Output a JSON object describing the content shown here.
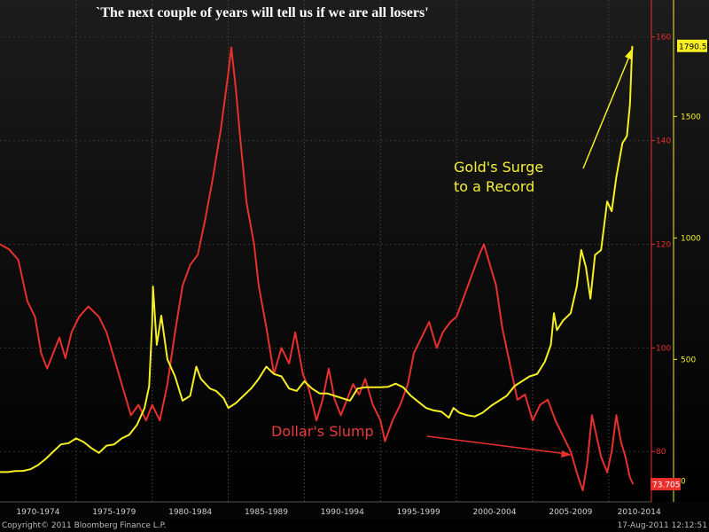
{
  "title": "`The next couple of years will tell us if we are all losers'",
  "annotations": {
    "gold": "Gold's Surge\nto a Record",
    "dollar": "Dollar's Slump"
  },
  "footer": {
    "copyright": "Copyright© 2011 Bloomberg Finance L.P.",
    "timestamp": "17-Aug-2011 12:12:51"
  },
  "chart_data": {
    "type": "line",
    "x_range": [
      1970.0,
      2011.7
    ],
    "x_tick_labels": [
      "1970-1974",
      "1975-1979",
      "1980-1984",
      "1985-1989",
      "1990-1994",
      "1995-1999",
      "2000-2004",
      "2005-2009",
      "2010-2014"
    ],
    "x_tick_label_centers": [
      1972.5,
      1977.5,
      1982.5,
      1987.5,
      1992.5,
      1997.5,
      2002.5,
      2007.5,
      2012.0
    ],
    "y_left": {
      "label": "",
      "range": [
        72,
        162
      ],
      "ticks": [
        80,
        100,
        120,
        140,
        160
      ]
    },
    "y_right": {
      "label": "",
      "range": [
        -50,
        1870
      ],
      "ticks": [
        0,
        500,
        1000,
        1500
      ]
    },
    "grid": true,
    "colors": {
      "dollar": "#e8302c",
      "gold": "#f5ef23",
      "background_top": "#1c1c1c",
      "background_bottom": "#000000",
      "axis_text": "#e8302c"
    },
    "series": [
      {
        "name": "Dollar's Slump",
        "axis": "left",
        "color": "#e8302c",
        "last_value_label": "73.705",
        "points": [
          [
            1970.0,
            120
          ],
          [
            1970.6,
            119
          ],
          [
            1971.2,
            117
          ],
          [
            1971.8,
            109
          ],
          [
            1972.3,
            106
          ],
          [
            1972.7,
            99
          ],
          [
            1973.1,
            96
          ],
          [
            1973.5,
            99
          ],
          [
            1973.9,
            102
          ],
          [
            1974.3,
            98
          ],
          [
            1974.7,
            103
          ],
          [
            1975.2,
            106
          ],
          [
            1975.8,
            108
          ],
          [
            1976.5,
            106
          ],
          [
            1977.0,
            103
          ],
          [
            1977.5,
            98
          ],
          [
            1978.1,
            92
          ],
          [
            1978.6,
            87
          ],
          [
            1979.1,
            89
          ],
          [
            1979.6,
            86
          ],
          [
            1980.0,
            89
          ],
          [
            1980.5,
            86
          ],
          [
            1981.0,
            93
          ],
          [
            1981.5,
            103
          ],
          [
            1982.0,
            112
          ],
          [
            1982.5,
            116
          ],
          [
            1983.0,
            118
          ],
          [
            1983.5,
            125
          ],
          [
            1984.0,
            133
          ],
          [
            1984.5,
            142
          ],
          [
            1985.0,
            153
          ],
          [
            1985.2,
            158
          ],
          [
            1985.5,
            150
          ],
          [
            1985.8,
            140
          ],
          [
            1986.2,
            128
          ],
          [
            1986.7,
            120
          ],
          [
            1987.0,
            112
          ],
          [
            1987.5,
            104
          ],
          [
            1988.0,
            95
          ],
          [
            1988.5,
            100
          ],
          [
            1989.0,
            97
          ],
          [
            1989.4,
            103
          ],
          [
            1989.9,
            95
          ],
          [
            1990.3,
            92
          ],
          [
            1990.8,
            86
          ],
          [
            1991.2,
            90
          ],
          [
            1991.6,
            96
          ],
          [
            1992.0,
            90
          ],
          [
            1992.4,
            87
          ],
          [
            1992.8,
            90
          ],
          [
            1993.2,
            93
          ],
          [
            1993.6,
            91
          ],
          [
            1994.0,
            94
          ],
          [
            1994.5,
            89
          ],
          [
            1995.0,
            86
          ],
          [
            1995.3,
            82
          ],
          [
            1995.8,
            86
          ],
          [
            1996.3,
            89
          ],
          [
            1996.8,
            93
          ],
          [
            1997.2,
            99
          ],
          [
            1997.7,
            102
          ],
          [
            1998.2,
            105
          ],
          [
            1998.7,
            100
          ],
          [
            1999.1,
            103
          ],
          [
            1999.6,
            105
          ],
          [
            2000.0,
            106
          ],
          [
            2000.5,
            110
          ],
          [
            2001.0,
            114
          ],
          [
            2001.5,
            118
          ],
          [
            2001.8,
            120
          ],
          [
            2002.2,
            116
          ],
          [
            2002.6,
            112
          ],
          [
            2003.0,
            104
          ],
          [
            2003.5,
            97
          ],
          [
            2004.0,
            90
          ],
          [
            2004.5,
            91
          ],
          [
            2005.0,
            86
          ],
          [
            2005.5,
            89
          ],
          [
            2006.0,
            90
          ],
          [
            2006.5,
            86
          ],
          [
            2007.0,
            83
          ],
          [
            2007.5,
            80
          ],
          [
            2008.0,
            75
          ],
          [
            2008.3,
            72.5
          ],
          [
            2008.6,
            78
          ],
          [
            2008.9,
            87
          ],
          [
            2009.2,
            83
          ],
          [
            2009.5,
            79
          ],
          [
            2009.9,
            76
          ],
          [
            2010.2,
            80
          ],
          [
            2010.5,
            87
          ],
          [
            2010.8,
            82
          ],
          [
            2011.1,
            79
          ],
          [
            2011.4,
            75
          ],
          [
            2011.6,
            73.705
          ]
        ]
      },
      {
        "name": "Gold's Surge to a Record",
        "axis": "right",
        "color": "#f5ef23",
        "last_value_label": "1790.55",
        "points": [
          [
            1970.0,
            36
          ],
          [
            1970.5,
            36
          ],
          [
            1971.0,
            40
          ],
          [
            1971.5,
            41
          ],
          [
            1972.0,
            48
          ],
          [
            1972.5,
            65
          ],
          [
            1973.0,
            90
          ],
          [
            1973.5,
            120
          ],
          [
            1974.0,
            150
          ],
          [
            1974.5,
            155
          ],
          [
            1975.0,
            175
          ],
          [
            1975.5,
            160
          ],
          [
            1976.0,
            135
          ],
          [
            1976.5,
            115
          ],
          [
            1977.0,
            145
          ],
          [
            1977.5,
            150
          ],
          [
            1978.0,
            175
          ],
          [
            1978.5,
            190
          ],
          [
            1979.0,
            230
          ],
          [
            1979.5,
            300
          ],
          [
            1979.8,
            390
          ],
          [
            1980.0,
            650
          ],
          [
            1980.05,
            800
          ],
          [
            1980.3,
            560
          ],
          [
            1980.6,
            680
          ],
          [
            1981.0,
            500
          ],
          [
            1981.5,
            430
          ],
          [
            1982.0,
            330
          ],
          [
            1982.5,
            350
          ],
          [
            1982.9,
            470
          ],
          [
            1983.2,
            420
          ],
          [
            1983.8,
            380
          ],
          [
            1984.2,
            370
          ],
          [
            1984.7,
            340
          ],
          [
            1985.0,
            300
          ],
          [
            1985.5,
            320
          ],
          [
            1986.0,
            350
          ],
          [
            1986.5,
            380
          ],
          [
            1987.0,
            420
          ],
          [
            1987.5,
            470
          ],
          [
            1988.0,
            440
          ],
          [
            1988.5,
            430
          ],
          [
            1989.0,
            380
          ],
          [
            1989.5,
            370
          ],
          [
            1990.0,
            410
          ],
          [
            1990.5,
            380
          ],
          [
            1991.0,
            360
          ],
          [
            1991.5,
            360
          ],
          [
            1992.0,
            350
          ],
          [
            1992.5,
            340
          ],
          [
            1993.0,
            330
          ],
          [
            1993.5,
            380
          ],
          [
            1994.0,
            385
          ],
          [
            1994.5,
            385
          ],
          [
            1995.0,
            385
          ],
          [
            1995.5,
            387
          ],
          [
            1996.0,
            400
          ],
          [
            1996.5,
            385
          ],
          [
            1997.0,
            350
          ],
          [
            1997.5,
            325
          ],
          [
            1998.0,
            300
          ],
          [
            1998.5,
            290
          ],
          [
            1999.0,
            285
          ],
          [
            1999.5,
            260
          ],
          [
            1999.8,
            300
          ],
          [
            2000.2,
            280
          ],
          [
            2000.7,
            270
          ],
          [
            2001.2,
            265
          ],
          [
            2001.7,
            280
          ],
          [
            2002.3,
            310
          ],
          [
            2002.8,
            330
          ],
          [
            2003.3,
            350
          ],
          [
            2003.8,
            390
          ],
          [
            2004.3,
            410
          ],
          [
            2004.8,
            430
          ],
          [
            2005.3,
            440
          ],
          [
            2005.8,
            490
          ],
          [
            2006.2,
            560
          ],
          [
            2006.4,
            690
          ],
          [
            2006.6,
            620
          ],
          [
            2007.0,
            660
          ],
          [
            2007.5,
            690
          ],
          [
            2007.9,
            800
          ],
          [
            2008.2,
            950
          ],
          [
            2008.5,
            880
          ],
          [
            2008.8,
            750
          ],
          [
            2009.1,
            930
          ],
          [
            2009.5,
            950
          ],
          [
            2009.9,
            1150
          ],
          [
            2010.2,
            1110
          ],
          [
            2010.5,
            1250
          ],
          [
            2010.9,
            1390
          ],
          [
            2011.2,
            1420
          ],
          [
            2011.4,
            1550
          ],
          [
            2011.55,
            1790.55
          ]
        ]
      }
    ]
  }
}
